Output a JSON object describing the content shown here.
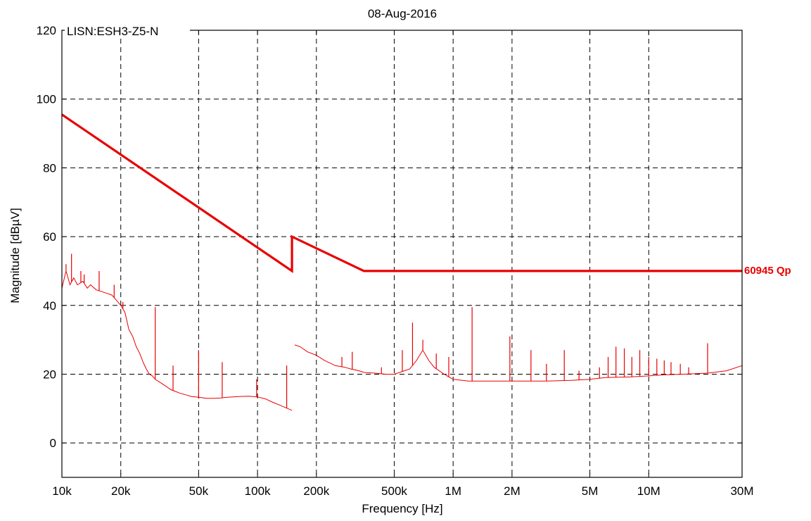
{
  "chart_data": {
    "type": "line",
    "title": "08-Aug-2016",
    "xlabel": "Frequency [Hz]",
    "ylabel": "Magnitude [dBµV]",
    "xscale": "log",
    "xlim": [
      10000,
      30000000
    ],
    "ylim": [
      -10,
      120
    ],
    "grid": true,
    "annotation": "LISN:ESH3-Z5-N",
    "x_ticks": [
      {
        "value": 10000,
        "label": "10k"
      },
      {
        "value": 20000,
        "label": "20k"
      },
      {
        "value": 50000,
        "label": "50k"
      },
      {
        "value": 100000,
        "label": "100k"
      },
      {
        "value": 200000,
        "label": "200k"
      },
      {
        "value": 500000,
        "label": "500k"
      },
      {
        "value": 1000000,
        "label": "1M"
      },
      {
        "value": 2000000,
        "label": "2M"
      },
      {
        "value": 5000000,
        "label": "5M"
      },
      {
        "value": 10000000,
        "label": "10M"
      },
      {
        "value": 30000000,
        "label": "30M"
      }
    ],
    "y_ticks": [
      0,
      20,
      40,
      60,
      80,
      100,
      120
    ],
    "colors": {
      "limit": "#e80000",
      "measurement": "#e80000",
      "axis": "#000000"
    },
    "series": [
      {
        "name": "60945 Qp",
        "role": "limit",
        "x": [
          10000,
          150000,
          150000,
          350000,
          30000000
        ],
        "y": [
          95.5,
          50,
          60,
          50,
          50
        ]
      },
      {
        "name": "",
        "role": "measurement",
        "x": [
          10000,
          10500,
          11000,
          11500,
          12000,
          12800,
          13500,
          14000,
          15000,
          16000,
          17000,
          18000,
          19000,
          20000,
          21000,
          22000,
          23000,
          24000,
          25000,
          26000,
          27000,
          28000,
          29000,
          30000,
          32000,
          34000,
          36000,
          38000,
          40000,
          43000,
          46000,
          50000,
          55000,
          60000,
          65000,
          70000,
          80000,
          90000,
          100000,
          110000,
          120000,
          130000,
          140000,
          150000,
          155000,
          165000,
          180000,
          200000,
          220000,
          250000,
          280000,
          300000,
          330000,
          350000,
          400000,
          450000,
          500000,
          550000,
          600000,
          650000,
          700000,
          750000,
          800000,
          900000,
          1000000,
          1200000,
          1500000,
          2000000,
          2500000,
          3000000,
          4000000,
          5000000,
          6000000,
          8000000,
          10000000,
          12000000,
          15000000,
          20000000,
          25000000,
          30000000
        ],
        "y": [
          45,
          50,
          46,
          48,
          46,
          47,
          45,
          46,
          44.5,
          44,
          43.5,
          43,
          41.5,
          40,
          38,
          33,
          31,
          28,
          26,
          23.5,
          21.5,
          20,
          19.5,
          18.5,
          17.5,
          16.5,
          15.5,
          15,
          14.5,
          14,
          13.5,
          13.3,
          13,
          13,
          13.1,
          13.3,
          13.5,
          13.6,
          13.4,
          12.8,
          11.8,
          11,
          10.2,
          9.5,
          28.5,
          28,
          26.5,
          25.5,
          24,
          22.5,
          22,
          21.5,
          21,
          20.5,
          20.3,
          20,
          20,
          20.8,
          21.5,
          24,
          27,
          24,
          22,
          20,
          18.5,
          18,
          18,
          18,
          18,
          18,
          18.2,
          18.5,
          19,
          19.2,
          19.5,
          19.8,
          20,
          20.3,
          21,
          22.5
        ]
      }
    ],
    "spikes": [
      {
        "x": 10500,
        "y": 52
      },
      {
        "x": 11200,
        "y": 55
      },
      {
        "x": 12500,
        "y": 50
      },
      {
        "x": 13000,
        "y": 49
      },
      {
        "x": 15500,
        "y": 50
      },
      {
        "x": 18500,
        "y": 46
      },
      {
        "x": 20500,
        "y": 41
      },
      {
        "x": 30000,
        "y": 39.5
      },
      {
        "x": 37000,
        "y": 22.5
      },
      {
        "x": 50000,
        "y": 27
      },
      {
        "x": 66000,
        "y": 23.5
      },
      {
        "x": 99000,
        "y": 18.5
      },
      {
        "x": 141000,
        "y": 22.5
      },
      {
        "x": 270000,
        "y": 25
      },
      {
        "x": 305000,
        "y": 26.5
      },
      {
        "x": 430000,
        "y": 22
      },
      {
        "x": 550000,
        "y": 27
      },
      {
        "x": 620000,
        "y": 35
      },
      {
        "x": 700000,
        "y": 30
      },
      {
        "x": 820000,
        "y": 26
      },
      {
        "x": 950000,
        "y": 25
      },
      {
        "x": 1250000,
        "y": 39.5
      },
      {
        "x": 1950000,
        "y": 31
      },
      {
        "x": 2500000,
        "y": 27
      },
      {
        "x": 3000000,
        "y": 23
      },
      {
        "x": 3700000,
        "y": 27
      },
      {
        "x": 4400000,
        "y": 21
      },
      {
        "x": 5600000,
        "y": 22
      },
      {
        "x": 6200000,
        "y": 25
      },
      {
        "x": 6800000,
        "y": 28
      },
      {
        "x": 7500000,
        "y": 27.5
      },
      {
        "x": 8200000,
        "y": 25
      },
      {
        "x": 9000000,
        "y": 27
      },
      {
        "x": 10000000,
        "y": 25
      },
      {
        "x": 11000000,
        "y": 24.5
      },
      {
        "x": 12000000,
        "y": 24
      },
      {
        "x": 13000000,
        "y": 23.5
      },
      {
        "x": 14500000,
        "y": 23
      },
      {
        "x": 16000000,
        "y": 22
      },
      {
        "x": 20000000,
        "y": 29
      }
    ]
  }
}
